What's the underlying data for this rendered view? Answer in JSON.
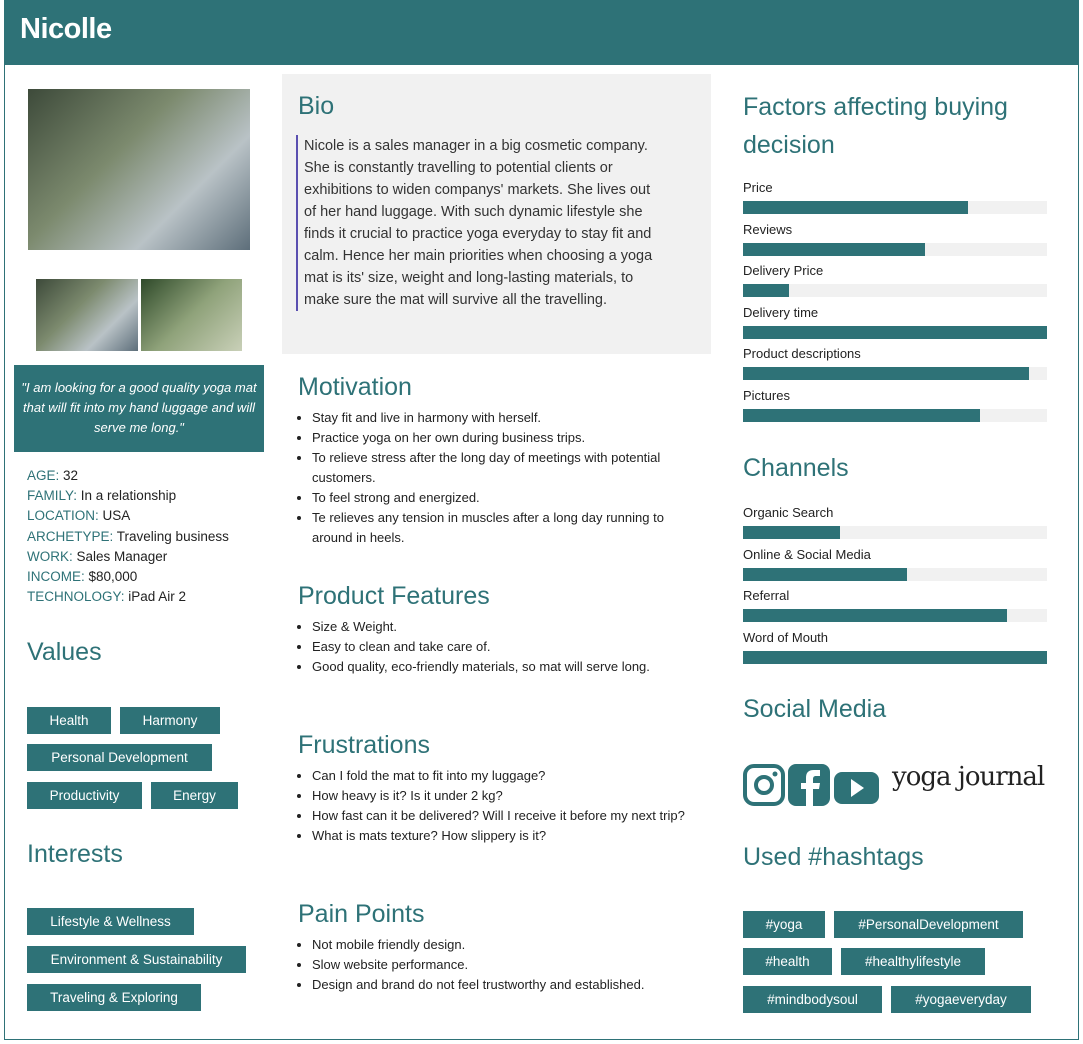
{
  "header": {
    "name": "Nicolle"
  },
  "quote": "\"I am looking for a good quality yoga mat that will fit into my hand luggage and will serve me long.\"",
  "info": [
    {
      "k": "AGE:",
      "v": " 32"
    },
    {
      "k": "FAMILY:",
      "v": " In a relationship"
    },
    {
      "k": "LOCATION:",
      "v": " USA"
    },
    {
      "k": "ARCHETYPE:",
      "v": " Traveling business"
    },
    {
      "k": "WORK:",
      "v": " Sales Manager"
    },
    {
      "k": "INCOME:",
      "v": " $80,000"
    },
    {
      "k": "TECHNOLOGY:",
      "v": " iPad Air 2"
    }
  ],
  "values": {
    "title": "Values",
    "tags": [
      "Health",
      "Harmony",
      "Personal Development",
      "Productivity",
      "Energy"
    ]
  },
  "interests": {
    "title": "Interests",
    "tags": [
      "Lifestyle & Wellness",
      "Environment & Sustainability",
      "Traveling & Exploring"
    ]
  },
  "bio": {
    "title": "Bio",
    "text": "Nicole is a sales manager in a big cosmetic company. She is constantly travelling to potential clients or exhibitions to widen companys' markets. She lives out of her hand luggage. With such dynamic lifestyle she finds it crucial to practice yoga everyday to stay fit and calm. Hence her main priorities when choosing a yoga mat is its' size, weight and long-lasting materials, to make sure the mat will survive all the travelling."
  },
  "motivation": {
    "title": "Motivation",
    "items": [
      "Stay fit and live in harmony with herself.",
      "Practice yoga on her own during business trips.",
      "To relieve stress after the long day of meetings with potential customers.",
      "To feel strong and energized.",
      "Te relieves any tension in muscles after a long day running to around in heels."
    ]
  },
  "features": {
    "title": "Product Features",
    "items": [
      "Size & Weight.",
      "Easy to clean and take care of.",
      "Good quality, eco-friendly materials, so mat will serve long."
    ]
  },
  "frustrations": {
    "title": "Frustrations",
    "items": [
      "Can I fold the mat to fit into my luggage?",
      "How heavy is it? Is it under 2 kg?",
      "How fast can it be delivered? Will I receive it before my next trip?",
      "What is mats texture? How slippery is it?"
    ]
  },
  "pain": {
    "title": "Pain Points",
    "items": [
      "Not mobile friendly design.",
      "Slow website performance.",
      "Design and brand do not feel trustworthy and established."
    ]
  },
  "factors": {
    "title": "Factors affecting buying decision",
    "bars": [
      {
        "label": "Price",
        "pct": 74
      },
      {
        "label": "Reviews",
        "pct": 60
      },
      {
        "label": "Delivery Price",
        "pct": 15
      },
      {
        "label": "Delivery time",
        "pct": 100
      },
      {
        "label": "Product descriptions",
        "pct": 94
      },
      {
        "label": "Pictures",
        "pct": 78
      }
    ]
  },
  "channels": {
    "title": "Channels",
    "bars": [
      {
        "label": "Organic Search",
        "pct": 32
      },
      {
        "label": "Online & Social Media",
        "pct": 54
      },
      {
        "label": "Referral",
        "pct": 87
      },
      {
        "label": "Word of Mouth",
        "pct": 100
      }
    ]
  },
  "social": {
    "title": "Social Media",
    "icons": [
      "instagram-icon",
      "facebook-icon",
      "youtube-icon"
    ],
    "logo": "yoga journal"
  },
  "hashtags": {
    "title": "Used #hashtags",
    "tags": [
      "#yoga",
      "#PersonalDevelopment",
      "#health",
      "#healthylifestyle",
      "#mindbodysoul",
      "#yogaeveryday"
    ]
  },
  "colors": {
    "accent": "#2e7277",
    "panel": "#f1f1f1"
  }
}
